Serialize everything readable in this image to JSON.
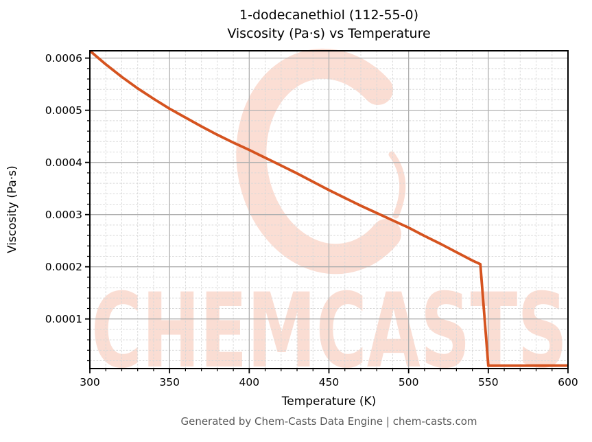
{
  "chart": {
    "title_line1": "1-dodecanethiol (112-55-0)",
    "title_line2": "Viscosity (Pa·s) vs Temperature",
    "xlabel": "Temperature (K)",
    "ylabel": "Viscosity (Pa·s)"
  },
  "footer": {
    "text": "Generated by Chem-Casts Data Engine | chem-casts.com"
  },
  "watermark": {
    "text": "CHEMCASTS",
    "logo": "chemcasts-c-swoosh-icon",
    "color": "#ed6a3c",
    "opacity": 0.22
  },
  "colors": {
    "line": "#d5531f",
    "grid_major": "#b0b0b0",
    "grid_minor": "#d8d8d8",
    "spine": "#000000",
    "tick_label": "#000000",
    "footer_text": "#595959"
  },
  "chart_data": {
    "type": "line",
    "title": "1-dodecanethiol (112-55-0) — Viscosity (Pa·s) vs Temperature",
    "xlabel": "Temperature (K)",
    "ylabel": "Viscosity (Pa·s)",
    "xlim": [
      300,
      600
    ],
    "ylim": [
      4.9e-06,
      0.000614
    ],
    "x_ticks": [
      300,
      350,
      400,
      450,
      500,
      550,
      600
    ],
    "x_tick_labels": [
      "300",
      "350",
      "400",
      "450",
      "500",
      "550",
      "600"
    ],
    "y_ticks": [
      0.0001,
      0.0002,
      0.0003,
      0.0004,
      0.0005,
      0.0006
    ],
    "y_tick_labels": [
      "0.0001",
      "0.0002",
      "0.0003",
      "0.0004",
      "0.0005",
      "0.0006"
    ],
    "x_minor_step": 10,
    "y_minor_step": 2e-05,
    "grid": true,
    "legend": "none",
    "series": [
      {
        "name": "viscosity",
        "x": [
          300,
          310,
          320,
          330,
          340,
          350,
          360,
          370,
          380,
          390,
          400,
          410,
          420,
          430,
          440,
          450,
          460,
          470,
          480,
          490,
          500,
          510,
          520,
          530,
          540,
          545,
          550,
          560,
          570,
          580,
          590,
          600
        ],
        "y": [
          0.000614,
          0.000588,
          0.000564,
          0.000542,
          0.000522,
          0.000503,
          0.000486,
          0.000469,
          0.000453,
          0.000438,
          0.000424,
          0.000409,
          0.000394,
          0.000379,
          0.000363,
          0.000347,
          0.000332,
          0.000317,
          0.000303,
          0.000289,
          0.000275,
          0.000259,
          0.000244,
          0.000228,
          0.000212,
          0.000205,
          1.04e-05,
          1.05e-05,
          1.05e-05,
          1.06e-05,
          1.06e-05,
          1.07e-05
        ]
      }
    ]
  }
}
